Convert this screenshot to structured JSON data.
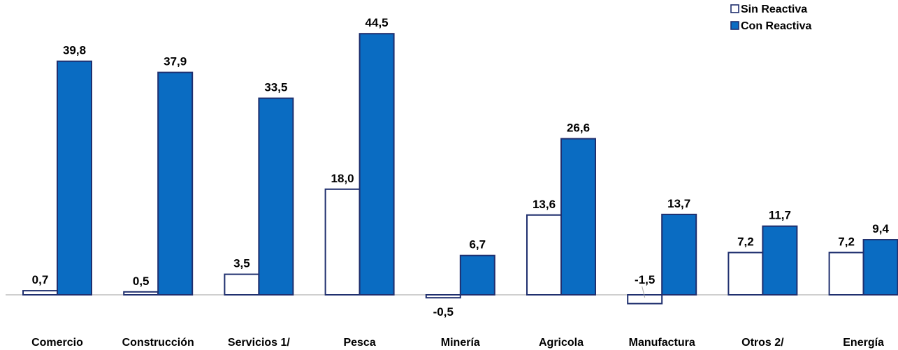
{
  "chart_data": {
    "type": "bar",
    "categories": [
      "Comercio",
      "Construcción",
      "Servicios 1/",
      "Pesca",
      "Minería",
      "Agricola",
      "Manufactura",
      "Otros 2/",
      "Energía"
    ],
    "series": [
      {
        "name": "Sin Reactiva",
        "values": [
          0.7,
          0.5,
          3.5,
          18.0,
          -0.5,
          13.6,
          -1.5,
          7.2,
          7.2
        ],
        "color": "#ffffff",
        "stroke": "#1f2f6e"
      },
      {
        "name": "Con Reactiva",
        "values": [
          39.8,
          37.9,
          33.5,
          44.5,
          6.7,
          26.6,
          13.7,
          11.7,
          9.4
        ],
        "color": "#0a6cc2",
        "stroke": "#1f2f6e"
      }
    ],
    "data_labels": [
      [
        "0,7",
        "0,5",
        "3,5",
        "18,0",
        "-0,5",
        "13,6",
        "-1,5",
        "7,2",
        "7,2"
      ],
      [
        "39,8",
        "37,9",
        "33,5",
        "44,5",
        "6,7",
        "26,6",
        "13,7",
        "11,7",
        "9,4"
      ]
    ],
    "ylim": [
      -2,
      46
    ],
    "grid": false,
    "legend_position": "top-right",
    "title": "",
    "xlabel": "",
    "ylabel": ""
  }
}
